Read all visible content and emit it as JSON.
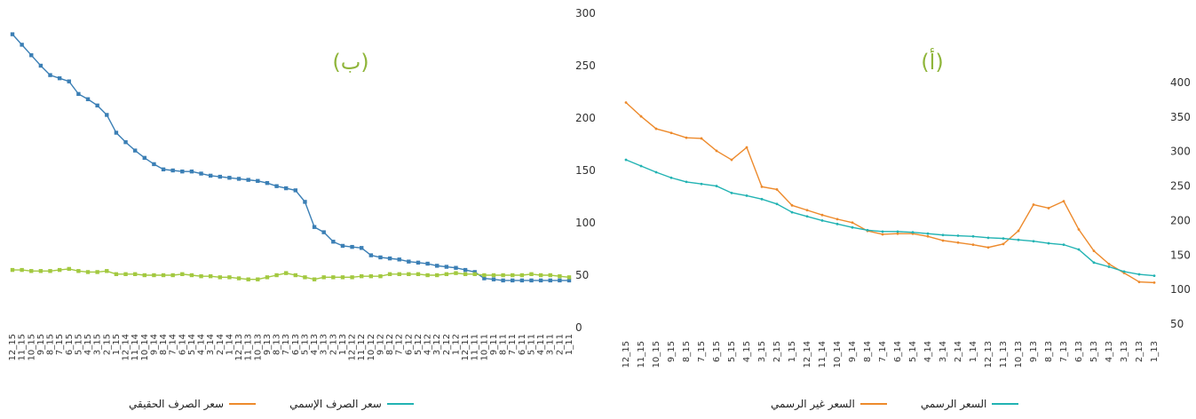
{
  "chart_data": [
    {
      "panel_label": "(ب)",
      "type": "line",
      "ylim": [
        0,
        300
      ],
      "yticks": [
        0,
        50,
        100,
        150,
        200,
        250,
        300
      ],
      "categories": [
        "12_15",
        "11_15",
        "10_15",
        "9_15",
        "8_15",
        "7_15",
        "6_15",
        "5_15",
        "4_15",
        "3_15",
        "2_15",
        "1_15",
        "12_14",
        "11_14",
        "10_14",
        "9_14",
        "8_14",
        "7_14",
        "6_14",
        "5_14",
        "4_14",
        "3_14",
        "2_14",
        "1_14",
        "12_13",
        "11_13",
        "10_13",
        "9_13",
        "8_13",
        "7_13",
        "6_13",
        "5_13",
        "4_13",
        "3_13",
        "2_13",
        "1_13",
        "12_12",
        "11_12",
        "10_12",
        "9_12",
        "8_12",
        "7_12",
        "6_12",
        "5_12",
        "4_12",
        "3_12",
        "2_12",
        "1_12",
        "12_11",
        "11_11",
        "10_11",
        "9_11",
        "8_11",
        "7_11",
        "6_11",
        "5_11",
        "4_11",
        "3_11",
        "2_11",
        "1_11"
      ],
      "series": [
        {
          "name": "سعر الصرف الإسمي",
          "color": "#3b7fb5",
          "marker": "square",
          "values": [
            280,
            270,
            260,
            250,
            241,
            238,
            235,
            223,
            218,
            212,
            203,
            186,
            177,
            169,
            162,
            156,
            151,
            150,
            149,
            149,
            147,
            145,
            144,
            143,
            142,
            141,
            140,
            138,
            135,
            133,
            131,
            120,
            96,
            91,
            82,
            78,
            77,
            76,
            69,
            67,
            66,
            65,
            63,
            62,
            61,
            59,
            58,
            57,
            55,
            53,
            47,
            46,
            45,
            45,
            45,
            45,
            45,
            45,
            45,
            45
          ]
        },
        {
          "name": "سعر الصرف الحقيقي",
          "color": "#a3c940",
          "marker": "square",
          "values": [
            55,
            55,
            54,
            54,
            54,
            55,
            56,
            54,
            53,
            53,
            54,
            51,
            51,
            51,
            50,
            50,
            50,
            50,
            51,
            50,
            49,
            49,
            48,
            48,
            47,
            46,
            46,
            48,
            50,
            52,
            50,
            48,
            46,
            48,
            48,
            48,
            48,
            49,
            49,
            49,
            51,
            51,
            51,
            51,
            50,
            50,
            51,
            52,
            51,
            51,
            50,
            50,
            50,
            50,
            50,
            51,
            50,
            50,
            49,
            48
          ]
        }
      ]
    },
    {
      "panel_label": "(أ)",
      "type": "line",
      "ylim": [
        50,
        400
      ],
      "yticks": [
        50,
        100,
        150,
        200,
        250,
        300,
        350,
        400
      ],
      "categories": [
        "12_15",
        "11_15",
        "10_15",
        "9_15",
        "8_15",
        "7_15",
        "6_15",
        "5_15",
        "4_15",
        "3_15",
        "2_15",
        "1_15",
        "12_14",
        "11_14",
        "10_14",
        "9_14",
        "8_14",
        "7_14",
        "6_14",
        "5_14",
        "4_14",
        "3_14",
        "2_14",
        "1_14",
        "12_13",
        "11_13",
        "10_13",
        "9_13",
        "8_13",
        "7_13",
        "6_13",
        "5_13",
        "4_13",
        "3_13",
        "2_13",
        "1_13"
      ],
      "series": [
        {
          "name": "السعر غير الرسمي",
          "color": "#ed8a2c",
          "marker": "circle",
          "values": [
            371,
            351,
            333,
            327,
            320,
            319,
            301,
            288,
            306,
            249,
            245,
            222,
            215,
            208,
            202,
            197,
            185,
            180,
            181,
            181,
            177,
            171,
            168,
            165,
            161,
            166,
            185,
            223,
            218,
            228,
            187,
            156,
            137,
            124,
            111,
            110
          ]
        },
        {
          "name": "السعر الرسمي",
          "color": "#22b3b3",
          "marker": "circle",
          "values": [
            288,
            279,
            270,
            262,
            256,
            253,
            250,
            240,
            236,
            231,
            224,
            212,
            206,
            200,
            195,
            190,
            186,
            184,
            184,
            183,
            181,
            179,
            178,
            177,
            175,
            174,
            172,
            170,
            167,
            165,
            158,
            139,
            133,
            126,
            122,
            120
          ]
        }
      ]
    }
  ]
}
